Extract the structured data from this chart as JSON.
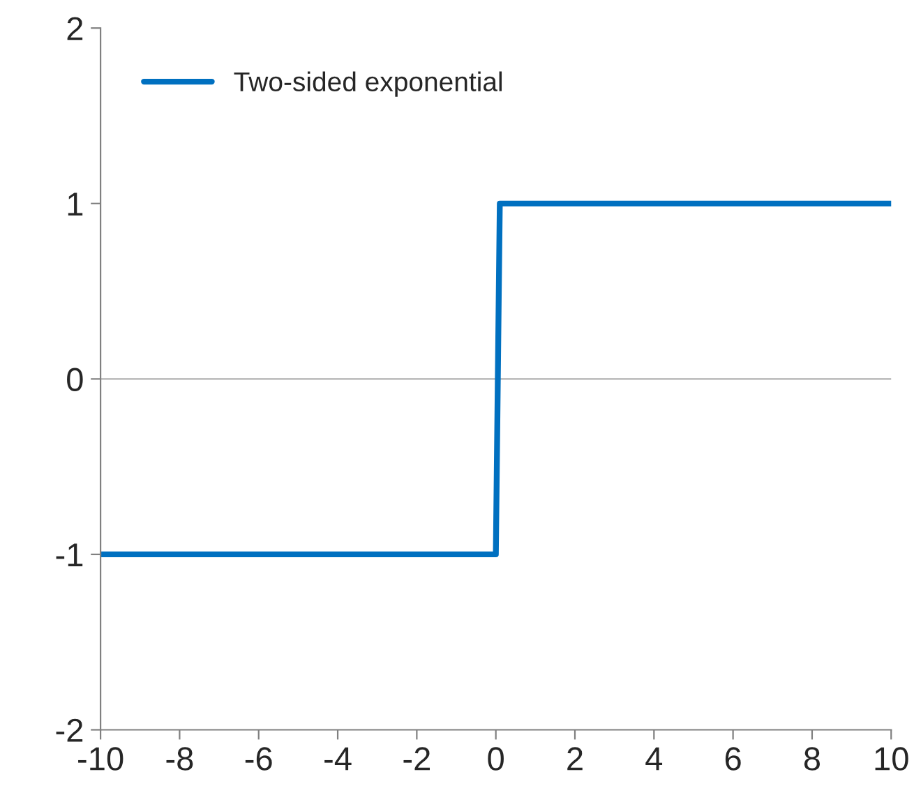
{
  "chart_data": {
    "type": "line",
    "x": [
      -10,
      0,
      0.1,
      10
    ],
    "series": [
      {
        "name": "Two-sided exponential",
        "color": "#0070c0",
        "values": [
          -1,
          -1,
          1,
          1
        ]
      }
    ],
    "xlim": [
      -10,
      10
    ],
    "xticks": [
      -10,
      -8,
      -6,
      -4,
      -2,
      0,
      2,
      4,
      6,
      8,
      10
    ],
    "ylim": [
      -2,
      2
    ],
    "yticks": [
      -2,
      -1,
      0,
      1,
      2
    ],
    "ref_lines": [
      {
        "axis": "y",
        "value": 0,
        "color": "#bfbfbf"
      }
    ],
    "grid": false,
    "legend": "top left",
    "marker": "none",
    "line_style": "solid"
  }
}
